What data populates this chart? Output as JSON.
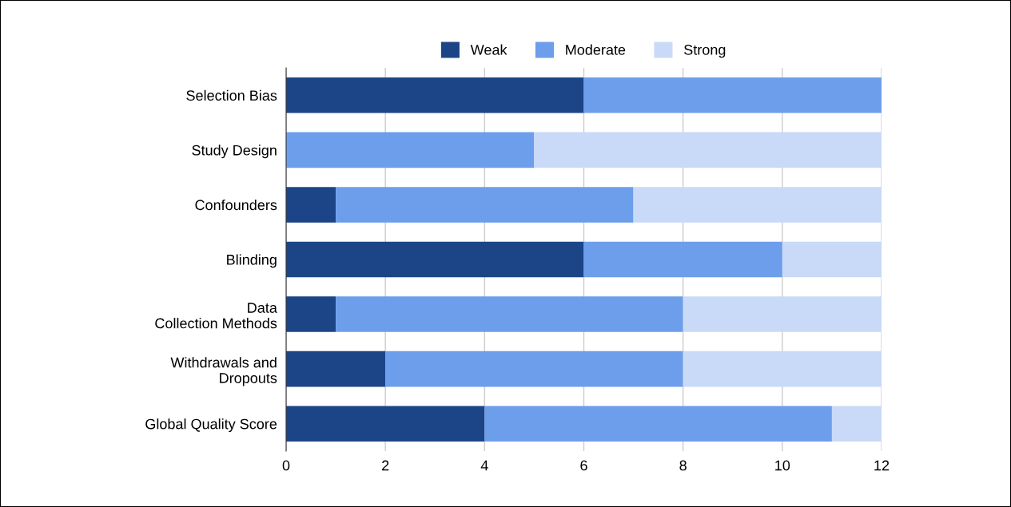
{
  "chart_data": {
    "type": "bar",
    "orientation": "horizontal",
    "stacked": true,
    "categories": [
      "Selection Bias",
      "Study Design",
      "Confounders",
      "Blinding",
      "Data Collection Methods",
      "Withdrawals and Dropouts",
      "Global Quality Score"
    ],
    "series": [
      {
        "name": "Weak",
        "color": "#1c4587",
        "values": [
          6,
          0,
          1,
          6,
          1,
          2,
          4
        ]
      },
      {
        "name": "Moderate",
        "color": "#6d9eeb",
        "values": [
          6,
          5,
          6,
          4,
          7,
          6,
          7
        ]
      },
      {
        "name": "Strong",
        "color": "#c9daf8",
        "values": [
          0,
          7,
          5,
          2,
          4,
          4,
          1
        ]
      }
    ],
    "xlim": [
      0,
      12
    ],
    "xticks": [
      0,
      2,
      4,
      6,
      8,
      10,
      12
    ],
    "grid": "x",
    "legend": "top"
  }
}
